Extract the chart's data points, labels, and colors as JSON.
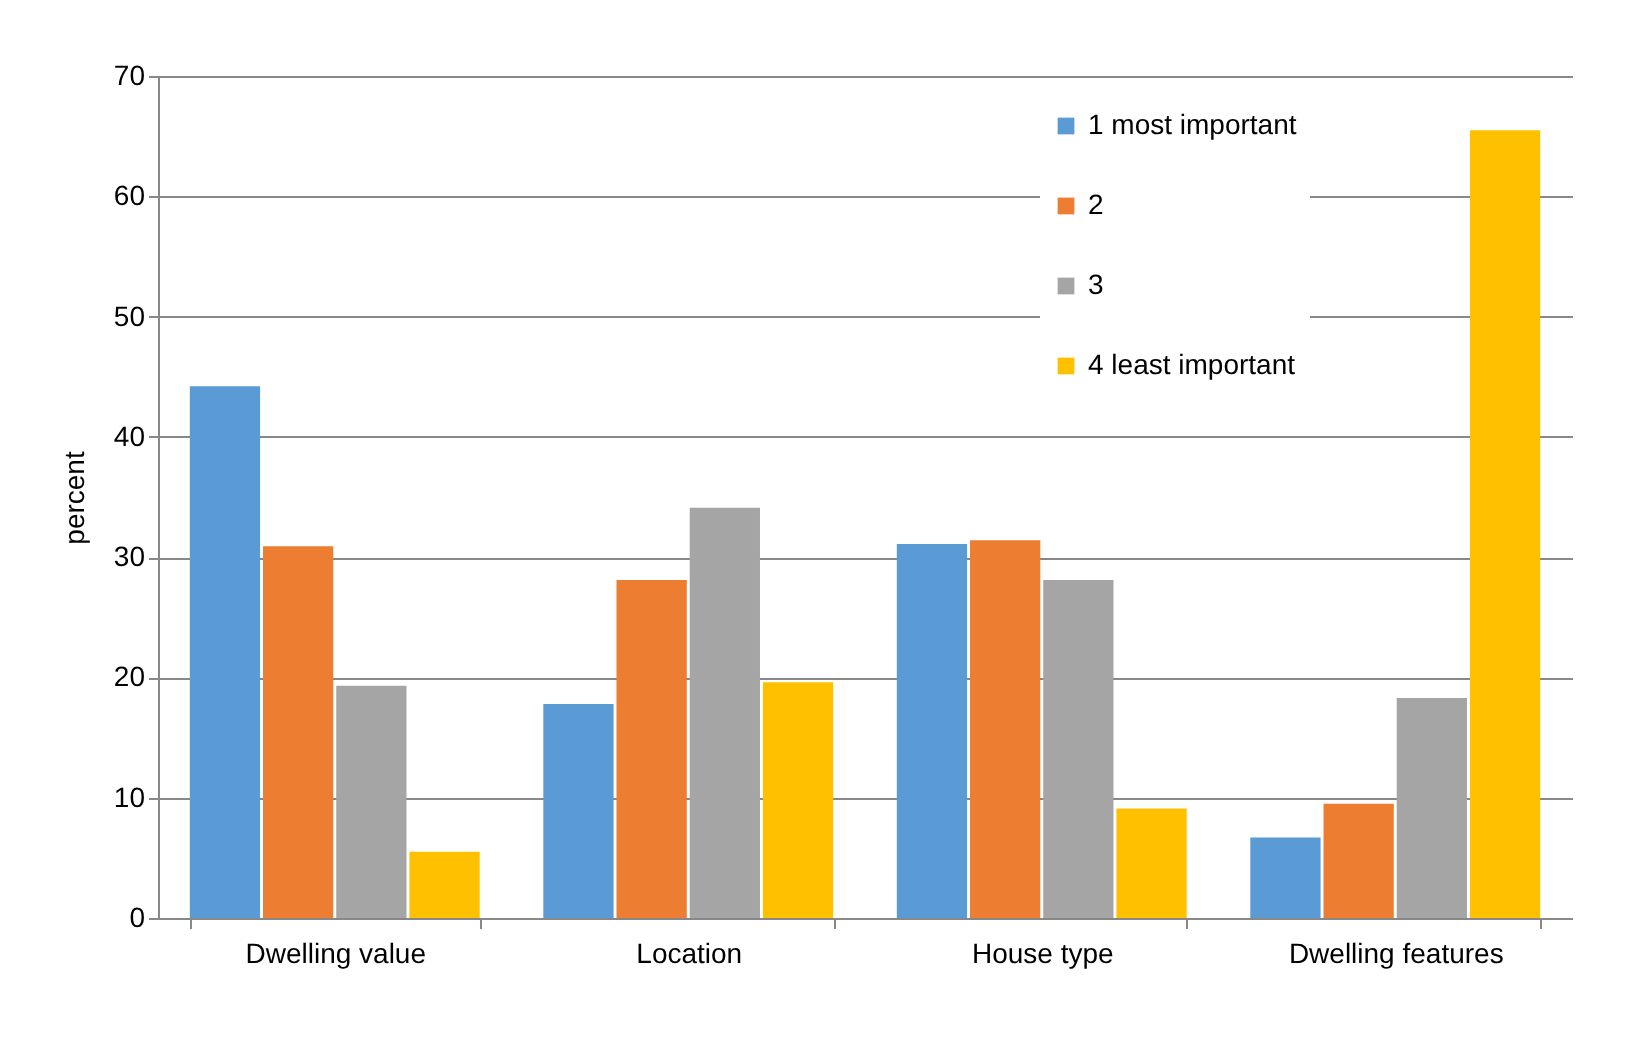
{
  "chart_data": {
    "type": "bar",
    "ylabel": "percent",
    "categories": [
      "Dwelling value",
      "Location",
      "House type",
      "Dwelling features"
    ],
    "series": [
      {
        "name": "1 most important",
        "color": "#5b9bd5",
        "values": [
          44.2,
          17.8,
          31.1,
          6.7
        ]
      },
      {
        "name": "2",
        "color": "#ed7d31",
        "values": [
          30.9,
          28.1,
          31.4,
          9.5
        ]
      },
      {
        "name": "3",
        "color": "#a5a5a5",
        "values": [
          19.3,
          34.1,
          28.1,
          18.3
        ]
      },
      {
        "name": "4 least important",
        "color": "#ffc000",
        "values": [
          5.5,
          19.6,
          9.1,
          65.5
        ]
      }
    ],
    "ylim": [
      0,
      70
    ],
    "yticks": [
      0,
      10,
      20,
      30,
      40,
      50,
      60,
      70
    ],
    "grid": "y",
    "legend": "top right"
  }
}
